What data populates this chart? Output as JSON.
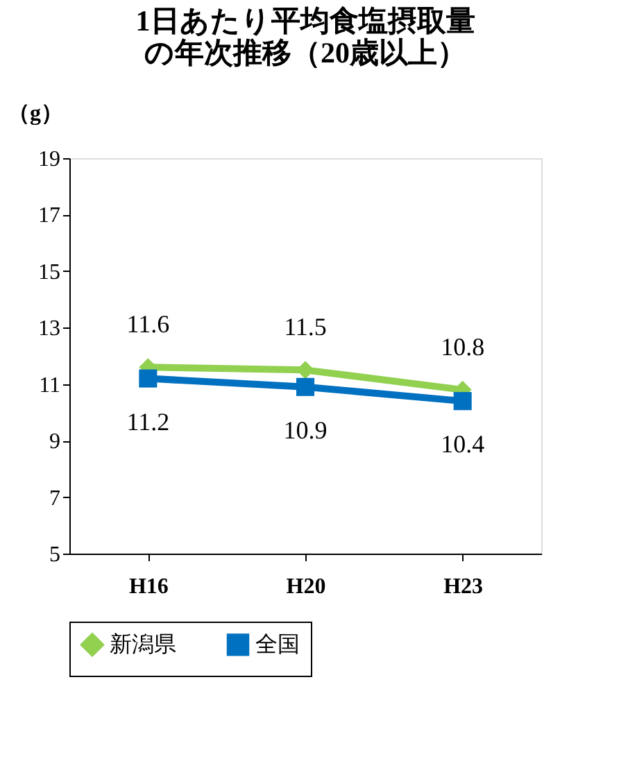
{
  "chart_data": {
    "type": "line",
    "title": [
      "1日あたり平均食塩摂取量",
      "の年次推移（20歳以上）"
    ],
    "ylabel": "（g）",
    "categories": [
      "H16",
      "H20",
      "H23"
    ],
    "series": [
      {
        "name": "新潟県",
        "color": "#92d050",
        "marker": "diamond",
        "values": [
          11.6,
          11.5,
          10.8
        ]
      },
      {
        "name": "全国",
        "color": "#0070c0",
        "marker": "square",
        "values": [
          11.2,
          10.9,
          10.4
        ]
      }
    ],
    "ylim": [
      5,
      19
    ],
    "yticks": [
      5,
      7,
      9,
      11,
      13,
      15,
      17,
      19
    ],
    "grid": false,
    "legend": "bottom",
    "data_labels": true,
    "line_style": "solid"
  }
}
